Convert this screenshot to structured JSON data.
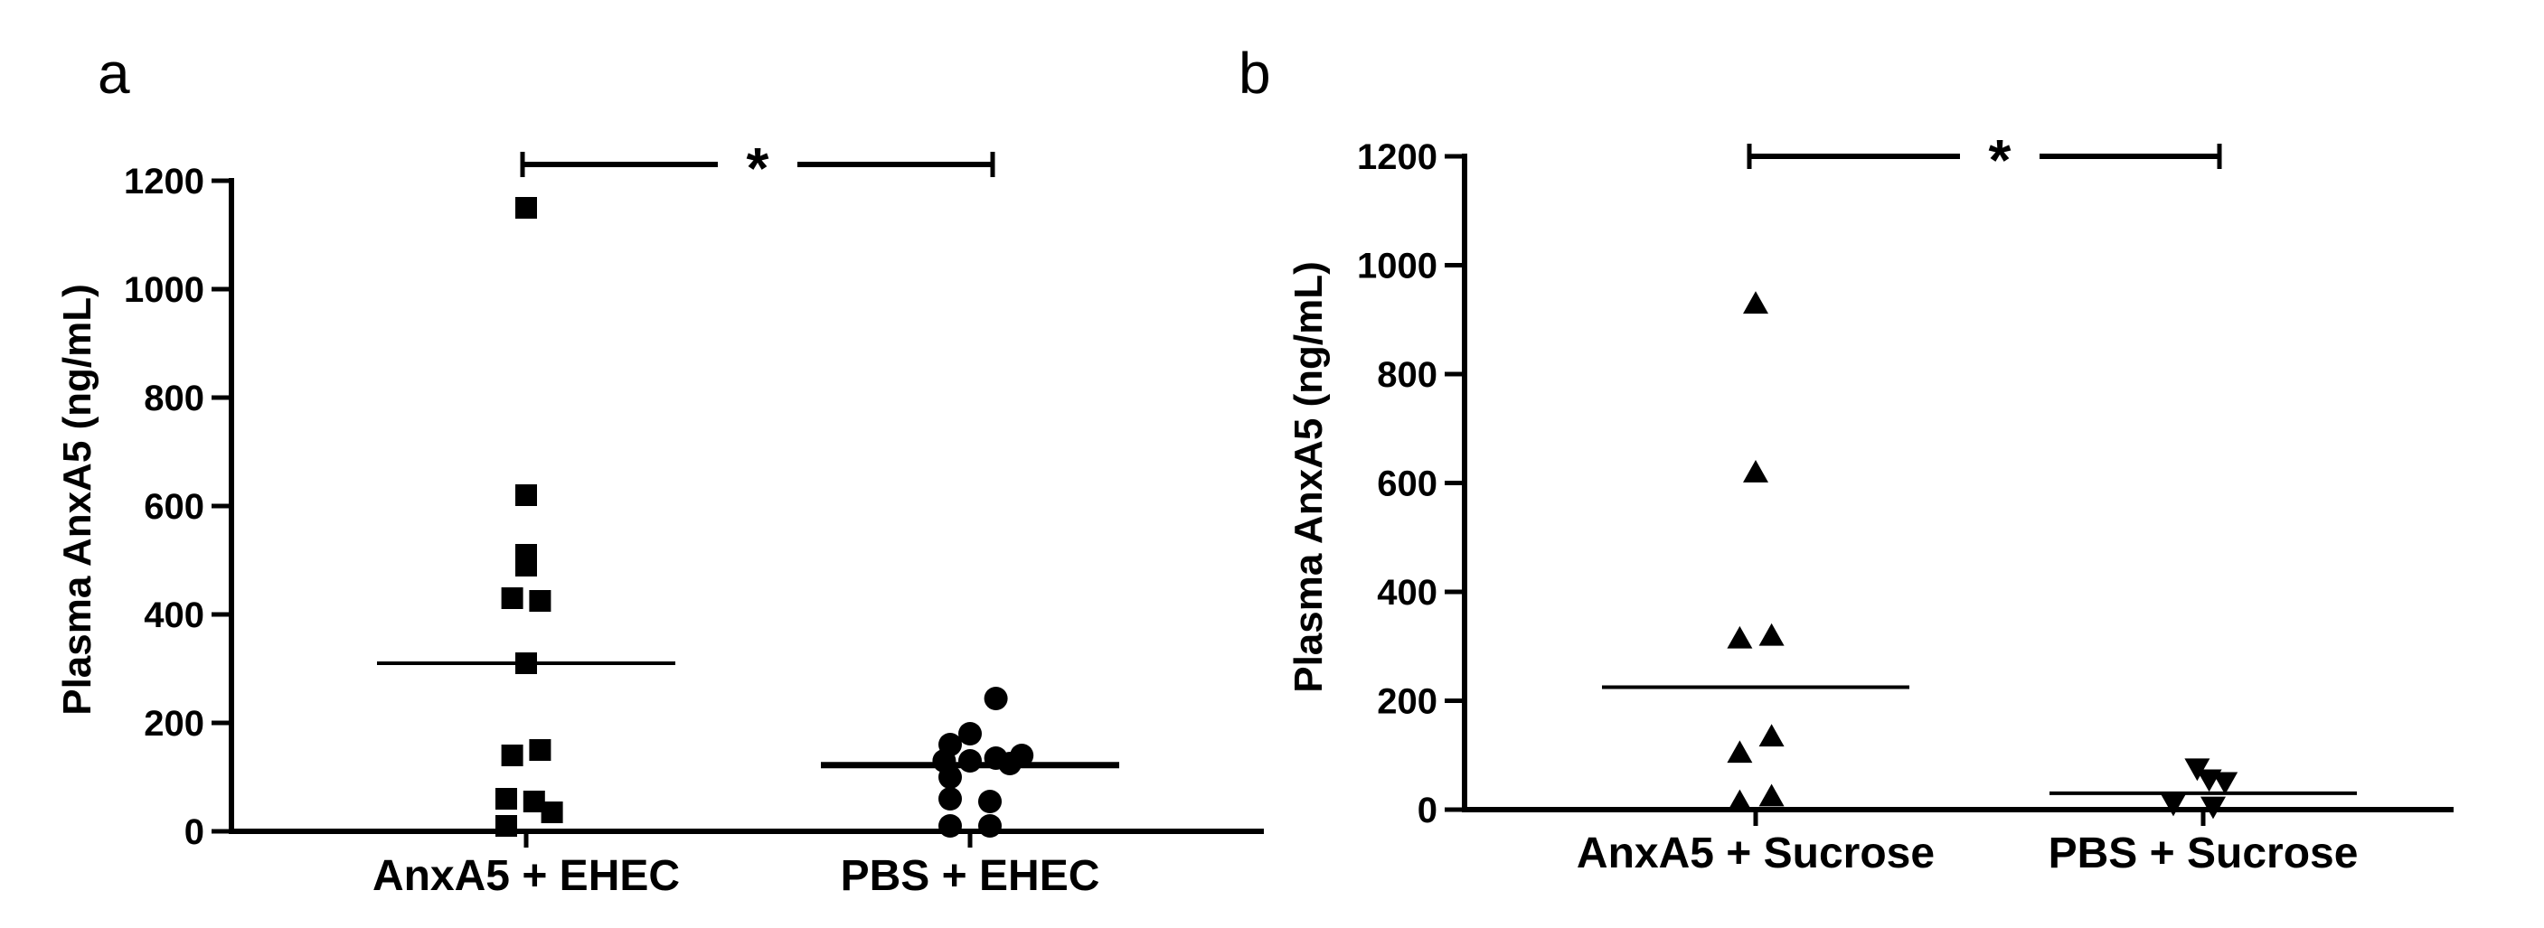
{
  "chart_data": [
    {
      "type": "scatter",
      "panel_label": "a",
      "ylabel": "Plasma AnxA5 (ng/mL)",
      "ylim": [
        0,
        1200
      ],
      "yticks": [
        0,
        200,
        400,
        600,
        800,
        1000,
        1200
      ],
      "categories": [
        "AnxA5 + EHEC",
        "PBS + EHEC"
      ],
      "series": [
        {
          "category": "AnxA5 + EHEC",
          "marker": "square",
          "values": [
            1150,
            620,
            510,
            490,
            430,
            425,
            310,
            150,
            140,
            60,
            55,
            35,
            10
          ],
          "jitter": [
            0,
            0,
            0,
            0,
            -0.7,
            0.7,
            0,
            0.7,
            -0.7,
            -1,
            0.4,
            1.3,
            -1
          ],
          "mean": 310
        },
        {
          "category": "PBS + EHEC",
          "marker": "circle",
          "values": [
            245,
            180,
            160,
            140,
            135,
            130,
            130,
            125,
            100,
            60,
            55,
            10,
            10
          ],
          "jitter": [
            1.3,
            0,
            -1,
            2.6,
            1.3,
            -1.3,
            0,
            2,
            -1,
            -1,
            1,
            -1,
            1
          ],
          "mean": 122
        }
      ],
      "significance": "*"
    },
    {
      "type": "scatter",
      "panel_label": "b",
      "ylabel": "Plasma AnxA5 (ng/mL)",
      "ylim": [
        0,
        1200
      ],
      "yticks": [
        0,
        200,
        400,
        600,
        800,
        1000,
        1200
      ],
      "categories": [
        "AnxA5 + Sucrose",
        "PBS + Sucrose"
      ],
      "series": [
        {
          "category": "AnxA5 + Sucrose",
          "marker": "triangle-up",
          "values": [
            930,
            620,
            320,
            315,
            135,
            105,
            25,
            15
          ],
          "jitter": [
            0,
            0,
            0.8,
            -0.8,
            0.8,
            -0.8,
            0.8,
            -0.8
          ],
          "mean": 225
        },
        {
          "category": "PBS + Sucrose",
          "marker": "triangle-down",
          "values": [
            75,
            55,
            50,
            10,
            5
          ],
          "jitter": [
            -0.3,
            0.3,
            1.1,
            -1.5,
            0.5
          ],
          "mean": 30
        }
      ],
      "significance": "*"
    }
  ]
}
